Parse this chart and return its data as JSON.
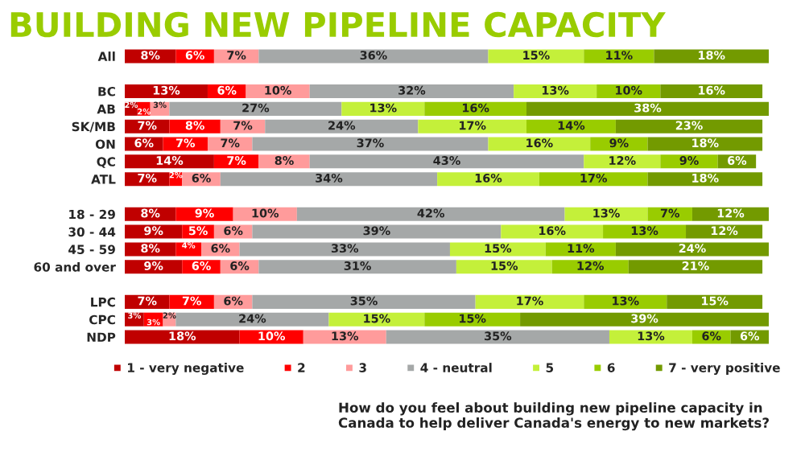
{
  "chart_data": {
    "type": "bar",
    "orientation": "horizontal",
    "stacked": true,
    "title": "BUILDING NEW PIPELINE CAPACITY",
    "categories": [
      "All",
      null,
      "BC",
      "AB",
      "SK/MB",
      "ON",
      "QC",
      "ATL",
      null,
      "18 - 29",
      "30 - 44",
      "45 - 59",
      "60 and over",
      null,
      "LPC",
      "CPC",
      "NDP"
    ],
    "series": [
      {
        "name": "1 - very negative",
        "color": "#c00000",
        "values": [
          8,
          null,
          13,
          2,
          7,
          6,
          14,
          7,
          null,
          8,
          9,
          8,
          9,
          null,
          7,
          3,
          18
        ],
        "value_labels": [
          "8%",
          null,
          "13%",
          "2%",
          "7%",
          "6%",
          "14%",
          "7%",
          null,
          "8%",
          "9%",
          "8%",
          "9%",
          null,
          "7%",
          "3%",
          "18%"
        ]
      },
      {
        "name": "2",
        "color": "#ff0000",
        "values": [
          6,
          null,
          6,
          2,
          8,
          7,
          7,
          2,
          null,
          9,
          5,
          4,
          6,
          null,
          7,
          3,
          10
        ],
        "value_labels": [
          "6%",
          null,
          "6%",
          "2%",
          "8%",
          "7%",
          "7%",
          "2%",
          null,
          "9%",
          "5%",
          "4%",
          "6%",
          null,
          "7%",
          "3%",
          "10%"
        ]
      },
      {
        "name": "3",
        "color": "#ff9b9b",
        "values": [
          7,
          null,
          10,
          3,
          7,
          7,
          8,
          6,
          null,
          10,
          6,
          6,
          6,
          null,
          6,
          2,
          13
        ],
        "value_labels": [
          "7%",
          null,
          "10%",
          "3%",
          "7%",
          "7%",
          "8%",
          "6%",
          null,
          "10%",
          "6%",
          "6%",
          "6%",
          null,
          "6%",
          "2%",
          "13%"
        ]
      },
      {
        "name": "4 - neutral",
        "color": "#a5a8a8",
        "values": [
          36,
          null,
          32,
          27,
          24,
          37,
          43,
          34,
          null,
          42,
          39,
          33,
          31,
          null,
          35,
          24,
          35
        ],
        "value_labels": [
          "36%",
          null,
          "32%",
          "27%",
          "24%",
          "37%",
          "43%",
          "34%",
          null,
          "42%",
          "39%",
          "33%",
          "31%",
          null,
          "35%",
          "24%",
          "35%"
        ]
      },
      {
        "name": "5",
        "color": "#c4f03a",
        "values": [
          15,
          null,
          13,
          13,
          17,
          16,
          12,
          16,
          null,
          13,
          16,
          15,
          15,
          null,
          17,
          15,
          13
        ],
        "value_labels": [
          "15%",
          null,
          "13%",
          "13%",
          "17%",
          "16%",
          "12%",
          "16%",
          null,
          "13%",
          "16%",
          "15%",
          "15%",
          null,
          "17%",
          "15%",
          "13%"
        ]
      },
      {
        "name": "6",
        "color": "#99cc00",
        "values": [
          11,
          null,
          10,
          16,
          14,
          9,
          9,
          17,
          null,
          7,
          13,
          11,
          12,
          null,
          13,
          15,
          6
        ],
        "value_labels": [
          "11%",
          null,
          "10%",
          "16%",
          "14%",
          "9%",
          "9%",
          "17%",
          null,
          "7%",
          "13%",
          "11%",
          "12%",
          null,
          "13%",
          "15%",
          "6%"
        ]
      },
      {
        "name": "7 - very positive",
        "color": "#739a00",
        "values": [
          18,
          null,
          16,
          38,
          23,
          18,
          6,
          18,
          null,
          12,
          12,
          24,
          21,
          null,
          15,
          39,
          6
        ],
        "value_labels": [
          "18%",
          null,
          "16%",
          "38%",
          "23%",
          "18%",
          "6%",
          "18%",
          null,
          "12%",
          "12%",
          "24%",
          "21%",
          null,
          "15%",
          "39%",
          "6%"
        ]
      }
    ],
    "legend": "bottom",
    "annotations": [
      "How do you feel about building new pipeline capacity in Canada to help deliver Canada's energy to new markets?"
    ]
  }
}
